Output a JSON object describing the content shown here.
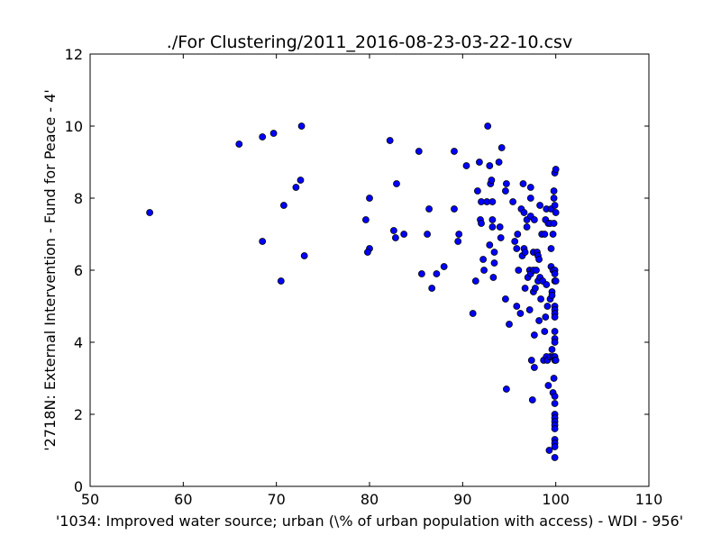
{
  "chart_data": {
    "type": "scatter",
    "title": "./For Clustering/2011_2016-08-23-03-22-10.csv",
    "xlabel": "'1034: Improved water source; urban  (\\% of urban population with access) - WDI - 956'",
    "ylabel": "'2718N: External Intervention - Fund for Peace - 4'",
    "xlim": [
      50,
      110
    ],
    "ylim": [
      0,
      12
    ],
    "xticks": [
      50,
      60,
      70,
      80,
      90,
      100,
      110
    ],
    "yticks": [
      0,
      2,
      4,
      6,
      8,
      10,
      12
    ],
    "grid": false,
    "marker_color": "#0000ff",
    "marker_edge_color": "#000000",
    "points": [
      [
        56.4,
        7.6
      ],
      [
        66.0,
        9.5
      ],
      [
        68.5,
        9.7
      ],
      [
        69.7,
        9.8
      ],
      [
        72.7,
        10.0
      ],
      [
        72.6,
        8.5
      ],
      [
        72.1,
        8.3
      ],
      [
        70.8,
        7.8
      ],
      [
        68.5,
        6.8
      ],
      [
        73.0,
        6.4
      ],
      [
        70.5,
        5.7
      ],
      [
        82.2,
        9.6
      ],
      [
        80.0,
        8.0
      ],
      [
        79.6,
        7.4
      ],
      [
        80.0,
        6.6
      ],
      [
        79.8,
        6.5
      ],
      [
        82.6,
        7.1
      ],
      [
        82.8,
        6.9
      ],
      [
        83.7,
        7.0
      ],
      [
        82.9,
        8.4
      ],
      [
        85.3,
        9.3
      ],
      [
        86.2,
        7.0
      ],
      [
        86.4,
        7.7
      ],
      [
        85.6,
        5.9
      ],
      [
        87.2,
        5.9
      ],
      [
        88.0,
        6.1
      ],
      [
        86.7,
        5.5
      ],
      [
        89.1,
        9.3
      ],
      [
        89.1,
        7.7
      ],
      [
        89.6,
        7.0
      ],
      [
        89.5,
        6.8
      ],
      [
        90.4,
        8.9
      ],
      [
        91.1,
        4.8
      ],
      [
        91.4,
        5.7
      ],
      [
        91.6,
        8.2
      ],
      [
        91.8,
        9.0
      ],
      [
        91.9,
        7.4
      ],
      [
        92.0,
        7.3
      ],
      [
        92.0,
        7.9
      ],
      [
        92.2,
        6.3
      ],
      [
        92.3,
        6.0
      ],
      [
        92.6,
        7.9
      ],
      [
        92.7,
        10.0
      ],
      [
        92.9,
        8.9
      ],
      [
        92.9,
        6.7
      ],
      [
        93.0,
        8.4
      ],
      [
        93.1,
        8.5
      ],
      [
        93.2,
        7.9
      ],
      [
        93.2,
        7.4
      ],
      [
        93.2,
        7.2
      ],
      [
        93.3,
        5.8
      ],
      [
        93.4,
        6.2
      ],
      [
        93.4,
        6.5
      ],
      [
        93.9,
        9.0
      ],
      [
        94.0,
        7.2
      ],
      [
        94.1,
        6.9
      ],
      [
        94.2,
        9.4
      ],
      [
        94.6,
        8.2
      ],
      [
        94.7,
        8.4
      ],
      [
        94.6,
        5.2
      ],
      [
        94.7,
        2.7
      ],
      [
        95.0,
        4.5
      ],
      [
        95.4,
        7.9
      ],
      [
        95.6,
        6.8
      ],
      [
        95.8,
        6.6
      ],
      [
        95.9,
        7.0
      ],
      [
        95.8,
        5.0
      ],
      [
        96.0,
        6.0
      ],
      [
        96.2,
        4.8
      ],
      [
        96.3,
        7.7
      ],
      [
        96.4,
        6.4
      ],
      [
        96.5,
        8.4
      ],
      [
        96.6,
        7.6
      ],
      [
        96.6,
        6.6
      ],
      [
        96.7,
        6.5
      ],
      [
        96.7,
        5.5
      ],
      [
        96.9,
        7.2
      ],
      [
        96.9,
        7.4
      ],
      [
        97.0,
        5.8
      ],
      [
        97.2,
        6.0
      ],
      [
        97.2,
        4.9
      ],
      [
        97.3,
        7.5
      ],
      [
        97.3,
        8.0
      ],
      [
        97.3,
        8.3
      ],
      [
        97.3,
        5.9
      ],
      [
        97.4,
        3.5
      ],
      [
        97.5,
        2.4
      ],
      [
        97.6,
        6.0
      ],
      [
        97.6,
        6.5
      ],
      [
        97.6,
        5.4
      ],
      [
        97.7,
        3.3
      ],
      [
        97.7,
        4.2
      ],
      [
        97.7,
        7.4
      ],
      [
        97.8,
        5.5
      ],
      [
        97.9,
        6.0
      ],
      [
        98.0,
        6.5
      ],
      [
        98.1,
        6.4
      ],
      [
        98.1,
        5.7
      ],
      [
        98.2,
        4.6
      ],
      [
        98.2,
        6.3
      ],
      [
        98.3,
        7.8
      ],
      [
        98.3,
        5.8
      ],
      [
        98.4,
        5.2
      ],
      [
        98.5,
        7.0
      ],
      [
        98.6,
        5.7
      ],
      [
        98.7,
        3.5
      ],
      [
        98.8,
        7.0
      ],
      [
        98.8,
        4.3
      ],
      [
        98.9,
        7.4
      ],
      [
        98.9,
        4.7
      ],
      [
        99.0,
        7.7
      ],
      [
        99.0,
        5.6
      ],
      [
        99.0,
        3.6
      ],
      [
        99.1,
        5.0
      ],
      [
        99.1,
        3.5
      ],
      [
        99.2,
        2.8
      ],
      [
        99.2,
        7.3
      ],
      [
        99.3,
        1.0
      ],
      [
        99.4,
        7.3
      ],
      [
        99.4,
        5.2
      ],
      [
        99.4,
        3.6
      ],
      [
        99.5,
        6.1
      ],
      [
        99.5,
        6.6
      ],
      [
        99.5,
        7.7
      ],
      [
        99.6,
        3.8
      ],
      [
        99.6,
        5.4
      ],
      [
        99.6,
        5.3
      ],
      [
        99.7,
        6.0
      ],
      [
        99.7,
        7.0
      ],
      [
        99.7,
        2.6
      ],
      [
        99.7,
        3.6
      ],
      [
        99.8,
        8.2
      ],
      [
        99.8,
        8.0
      ],
      [
        99.8,
        7.3
      ],
      [
        99.8,
        3.0
      ],
      [
        99.9,
        8.7
      ],
      [
        99.9,
        7.8
      ],
      [
        99.9,
        6.0
      ],
      [
        99.9,
        5.9
      ],
      [
        99.9,
        5.7
      ],
      [
        99.9,
        5.0
      ],
      [
        99.9,
        4.9
      ],
      [
        99.9,
        4.8
      ],
      [
        99.9,
        4.7
      ],
      [
        99.9,
        4.3
      ],
      [
        99.9,
        4.1
      ],
      [
        99.9,
        4.0
      ],
      [
        99.9,
        3.6
      ],
      [
        99.9,
        3.5
      ],
      [
        99.9,
        2.5
      ],
      [
        99.9,
        2.3
      ],
      [
        99.9,
        2.0
      ],
      [
        99.9,
        1.9
      ],
      [
        99.9,
        1.8
      ],
      [
        99.9,
        1.7
      ],
      [
        99.9,
        1.6
      ],
      [
        99.9,
        1.3
      ],
      [
        99.9,
        1.2
      ],
      [
        99.9,
        1.1
      ],
      [
        99.9,
        0.8
      ],
      [
        100.0,
        8.8
      ],
      [
        100.0,
        7.6
      ],
      [
        100.0,
        5.7
      ],
      [
        100.0,
        3.5
      ]
    ]
  }
}
